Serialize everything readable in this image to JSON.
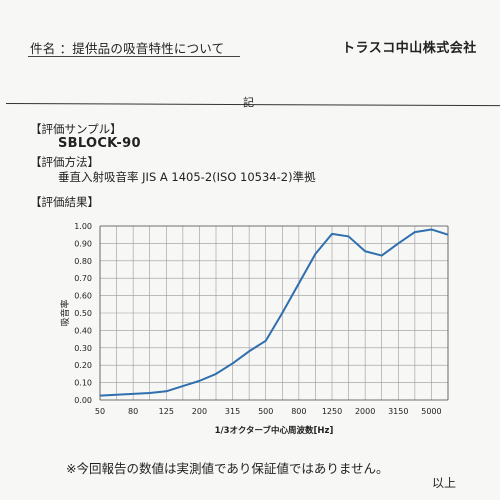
{
  "header": {
    "subject": "件名 ：提供品の吸音特性について",
    "company": "トラスコ中山株式会社",
    "ki": "記"
  },
  "sections": {
    "sample_heading": "【評価サンプル】",
    "sample_value": "SBLOCK-90",
    "method_heading": "【評価方法】",
    "method_value": "垂直入射吸音率 JIS A 1405-2(ISO 10534-2)準拠",
    "results_heading": "【評価結果】"
  },
  "chart_data": {
    "type": "line",
    "xlabel": "1/3オクターブ中心周波数[Hz]",
    "ylabel": "吸音率",
    "ylim": [
      0,
      1.0
    ],
    "ytick_labels": [
      "0.00",
      "0.10",
      "0.20",
      "0.30",
      "0.40",
      "0.50",
      "0.60",
      "0.70",
      "0.80",
      "0.90",
      "1.00"
    ],
    "xtick_labels": [
      "50",
      "80",
      "125",
      "200",
      "315",
      "500",
      "800",
      "1250",
      "2000",
      "3150",
      "5000"
    ],
    "grid": true,
    "line_color": "#2f6fae",
    "x": [
      50,
      63,
      80,
      100,
      125,
      160,
      200,
      250,
      315,
      400,
      500,
      630,
      800,
      1000,
      1250,
      1600,
      2000,
      2500,
      3150,
      4000,
      5000,
      6300
    ],
    "values": [
      0.025,
      0.03,
      0.035,
      0.04,
      0.05,
      0.08,
      0.11,
      0.15,
      0.21,
      0.28,
      0.34,
      0.5,
      0.67,
      0.84,
      0.955,
      0.94,
      0.855,
      0.83,
      0.9,
      0.965,
      0.98,
      0.95
    ]
  },
  "footer": {
    "note": "※今回報告の数値は実測値であり保証値ではありません。",
    "end": "以上"
  }
}
